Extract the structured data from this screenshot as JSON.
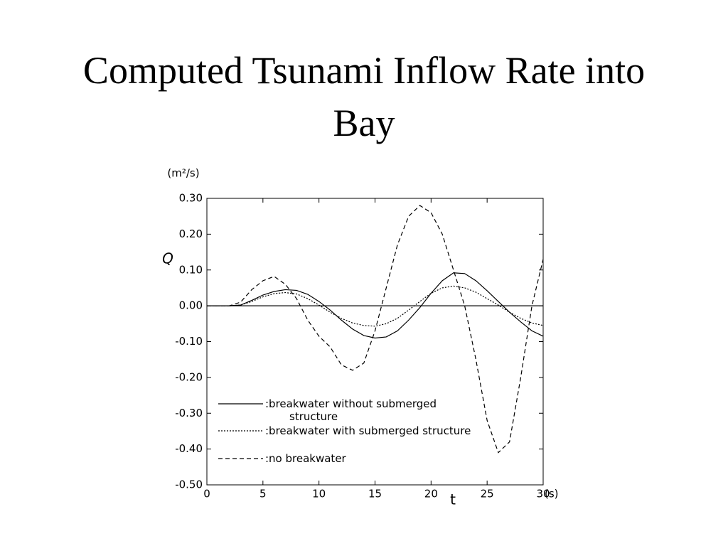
{
  "chart_data": {
    "type": "line",
    "title": "Computed Tsunami Inflow Rate into Bay",
    "y_unit": "(m²/s)",
    "y_label": "Q",
    "x_unit": "(s)",
    "x_label": "t",
    "x": [
      0,
      1,
      2,
      3,
      4,
      5,
      6,
      7,
      8,
      9,
      10,
      11,
      12,
      13,
      14,
      15,
      16,
      17,
      18,
      19,
      20,
      21,
      22,
      23,
      24,
      25,
      26,
      27,
      28,
      29,
      30
    ],
    "xlim": [
      0,
      30
    ],
    "xticks": [
      0,
      5,
      10,
      15,
      20,
      25,
      30
    ],
    "ylim": [
      -0.5,
      0.3
    ],
    "yticks": [
      {
        "value": 0.3,
        "label": "0.30"
      },
      {
        "value": 0.2,
        "label": "0.20"
      },
      {
        "value": 0.1,
        "label": "0.10"
      },
      {
        "value": 0,
        "label": "0.00"
      },
      {
        "value": -0.1,
        "label": "-0.10"
      },
      {
        "value": -0.2,
        "label": "-0.20"
      },
      {
        "value": -0.3,
        "label": "-0.30"
      },
      {
        "value": -0.4,
        "label": "-0.40"
      },
      {
        "value": -0.5,
        "label": "-0.50"
      }
    ],
    "zero_line": true,
    "series": [
      {
        "name": ":breakwater without submerged structure",
        "color": "#000000",
        "dash": "solid",
        "values": [
          0,
          0,
          0,
          0.002,
          0.015,
          0.03,
          0.04,
          0.045,
          0.043,
          0.032,
          0.012,
          -0.012,
          -0.04,
          -0.065,
          -0.083,
          -0.09,
          -0.087,
          -0.07,
          -0.04,
          -0.005,
          0.035,
          0.07,
          0.092,
          0.09,
          0.07,
          0.042,
          0.012,
          -0.018,
          -0.045,
          -0.07,
          -0.085
        ]
      },
      {
        "name": ":breakwater with submerged structure",
        "color": "#000000",
        "dash": "dotted",
        "values": [
          0,
          0,
          0,
          0.002,
          0.012,
          0.025,
          0.034,
          0.037,
          0.033,
          0.02,
          0.002,
          -0.018,
          -0.035,
          -0.048,
          -0.055,
          -0.057,
          -0.05,
          -0.035,
          -0.012,
          0.012,
          0.035,
          0.05,
          0.055,
          0.05,
          0.038,
          0.02,
          0.002,
          -0.018,
          -0.035,
          -0.048,
          -0.055
        ]
      },
      {
        "name": ":no breakwater",
        "color": "#000000",
        "dash": "dashed",
        "values": [
          0,
          0,
          0,
          0.01,
          0.045,
          0.07,
          0.082,
          0.06,
          0.02,
          -0.04,
          -0.085,
          -0.115,
          -0.165,
          -0.18,
          -0.16,
          -0.07,
          0.05,
          0.17,
          0.25,
          0.28,
          0.26,
          0.2,
          0.1,
          0.0,
          -0.15,
          -0.32,
          -0.41,
          -0.38,
          -0.2,
          0.0,
          0.13
        ]
      }
    ]
  }
}
